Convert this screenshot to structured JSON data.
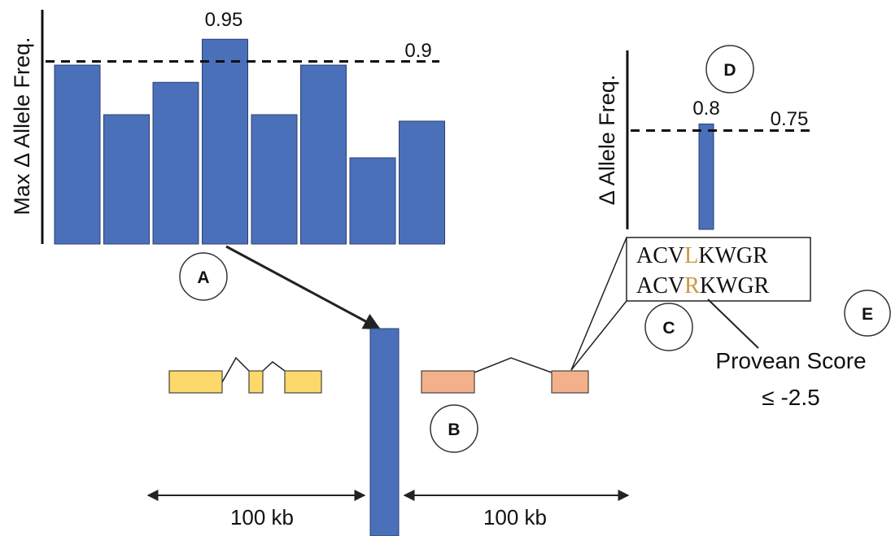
{
  "colors": {
    "bar_blue": "#4a70ba",
    "gene1_fill": "#fdd86a",
    "gene2_fill": "#f4b08a",
    "highlight": "#c89a3c",
    "line": "#222222"
  },
  "panel_a": {
    "ylabel": "Max Δ Allele Freq.",
    "peak_label": "0.95",
    "threshold_label": "0.9",
    "threshold": 0.9,
    "values": [
      0.83,
      0.6,
      0.75,
      0.95,
      0.6,
      0.83,
      0.4,
      0.57
    ],
    "marker": "A"
  },
  "panel_b": {
    "marker": "B",
    "left_distance": "100 kb",
    "right_distance": "100 kb"
  },
  "panel_c": {
    "marker": "C",
    "seq1_prefix": "ACV",
    "seq1_residue": "L",
    "seq1_suffix": "KWGR",
    "seq2_prefix": "ACV",
    "seq2_residue": "R",
    "seq2_suffix": "KWGR"
  },
  "panel_d": {
    "ylabel": "Δ Allele Freq.",
    "bar_label": "0.8",
    "threshold_label": "0.75",
    "threshold": 0.75,
    "value": 0.8,
    "marker": "D"
  },
  "panel_e": {
    "marker": "E",
    "score_line1": "Provean Score",
    "score_line2": "≤ -2.5"
  }
}
